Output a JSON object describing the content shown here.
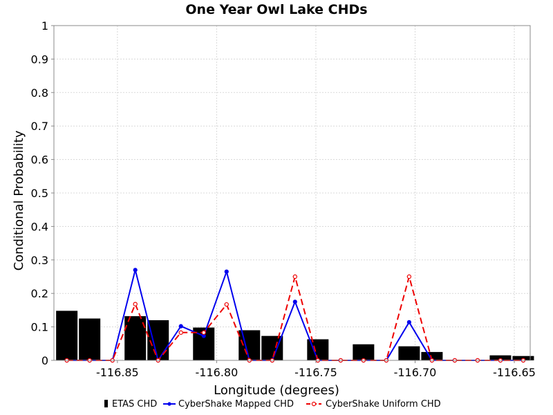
{
  "chart_data": {
    "type": "bar",
    "title": "One Year Owl Lake CHDs",
    "xlabel": "Longitude (degrees)",
    "ylabel": "Conditional Probability",
    "xlim": [
      -116.882,
      -116.642
    ],
    "ylim": [
      0,
      1
    ],
    "x_ticks": [
      -116.85,
      -116.8,
      -116.75,
      -116.7,
      -116.65
    ],
    "x_tick_labels": [
      "-116.85",
      "-116.80",
      "-116.75",
      "-116.70",
      "-116.65"
    ],
    "y_ticks": [
      0,
      0.1,
      0.2,
      0.3,
      0.4,
      0.5,
      0.6,
      0.7,
      0.8,
      0.9,
      1
    ],
    "y_tick_labels": [
      "0",
      "0.1",
      "0.2",
      "0.3",
      "0.4",
      "0.5",
      "0.6",
      "0.7",
      "0.8",
      "0.9",
      "1"
    ],
    "grid": true,
    "legend_position": "bottom",
    "x": [
      -116.8755,
      -116.864,
      -116.8525,
      -116.841,
      -116.8295,
      -116.818,
      -116.8065,
      -116.795,
      -116.7835,
      -116.772,
      -116.7605,
      -116.749,
      -116.7375,
      -116.726,
      -116.7145,
      -116.703,
      -116.6915,
      -116.68,
      -116.6685,
      -116.657,
      -116.6455
    ],
    "series": [
      {
        "name": "ETAS CHD",
        "style": "bar",
        "color": "#000000",
        "values": [
          0.148,
          0.125,
          0,
          0.132,
          0.12,
          0,
          0.098,
          0,
          0.09,
          0.073,
          0,
          0.063,
          0,
          0.048,
          0,
          0.042,
          0.025,
          0,
          0,
          0.015,
          0.013
        ]
      },
      {
        "name": "CyberShake Mapped CHD",
        "style": "line",
        "color": "#0000ee",
        "values": [
          0,
          0,
          0,
          0.27,
          0,
          0.102,
          0.073,
          0.265,
          0,
          0,
          0.175,
          0,
          0,
          0,
          0,
          0.114,
          0,
          0,
          0,
          0,
          0
        ]
      },
      {
        "name": "CyberShake Uniform CHD",
        "style": "dashed-line-open-markers",
        "color": "#ee0000",
        "values": [
          0,
          0,
          0,
          0.168,
          0,
          0.083,
          0.083,
          0.167,
          0,
          0,
          0.25,
          0,
          0,
          0,
          0,
          0.25,
          0,
          0,
          0,
          0,
          0
        ]
      }
    ]
  }
}
